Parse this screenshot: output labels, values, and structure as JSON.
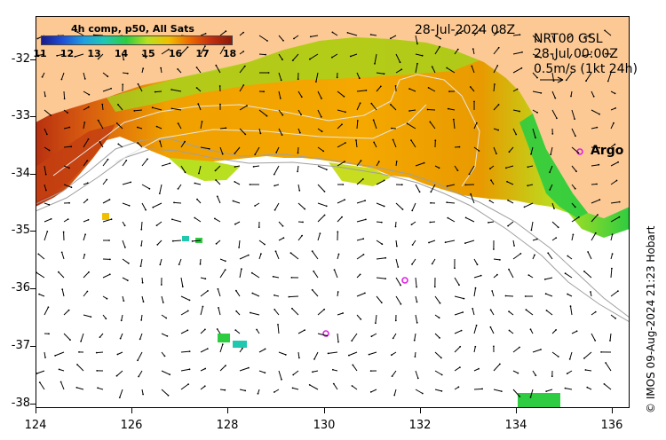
{
  "colorbar": {
    "title": "4h comp, p50, All Sats",
    "ticks": [
      "11",
      "12",
      "13",
      "14",
      "15",
      "16",
      "17",
      "18"
    ],
    "colors": [
      "#1a1a8c",
      "#1f4fd8",
      "#1fa0e0",
      "#21c8b0",
      "#2ecc40",
      "#b8e020",
      "#f0c000",
      "#ee6a00",
      "#c43010",
      "#8a1a0a"
    ]
  },
  "header": {
    "date_label": "28-Jul-2024 08Z",
    "current_source": "NRT00 GSL",
    "current_time": "28-Jul 00:00Z",
    "scale_label": "0.5m/s (1kt 24h)"
  },
  "axes": {
    "y_ticks": [
      "-32",
      "-33",
      "-34",
      "-35",
      "-36",
      "-37",
      "-38"
    ],
    "x_ticks": [
      "124",
      "126",
      "128",
      "130",
      "132",
      "134",
      "136"
    ]
  },
  "markers": {
    "argo_label": "Argo"
  },
  "credit": "© IMOS 09-Aug-2024 21:23 Hobart",
  "colors": {
    "land": "#fcc995",
    "ocean_blank": "#ffffff",
    "argo_marker": "#e020e0"
  }
}
